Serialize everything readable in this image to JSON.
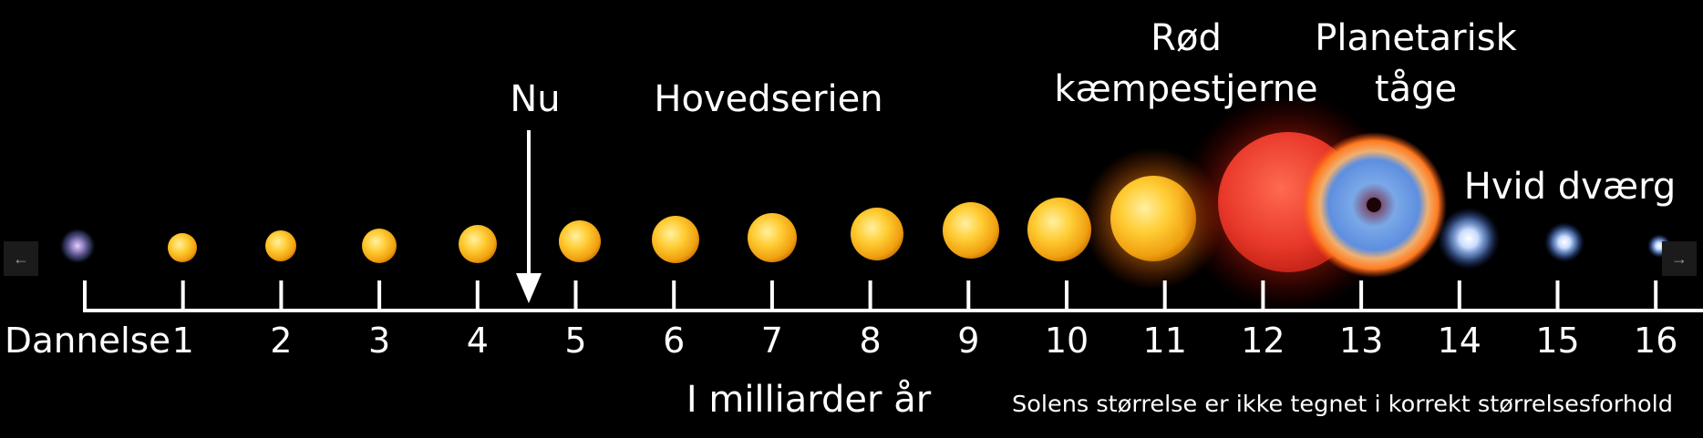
{
  "stages": {
    "nu": "Nu",
    "main_sequence": "Hovedserien",
    "red_giant_line1": "Rød",
    "red_giant_line2": "kæmpestjerne",
    "nebula_line1": "Planetarisk",
    "nebula_line2": "tåge",
    "white_dwarf": "Hvid dværg"
  },
  "axis": {
    "ticks": [
      "Dannelse",
      "1",
      "2",
      "3",
      "4",
      "5",
      "6",
      "7",
      "8",
      "9",
      "10",
      "11",
      "12",
      "13",
      "14",
      "15",
      "16"
    ],
    "label": "I milliarder år",
    "now_value": 4.5
  },
  "note": "Solens størrelse er ikke tegnet i korrekt størrelsesforhold",
  "nav": {
    "prev": "←",
    "next": "→"
  },
  "colors": {
    "background": "#000000",
    "sun": "#f5b820",
    "red_giant": "#e8382a",
    "white_dwarf": "#bcd4ff"
  }
}
